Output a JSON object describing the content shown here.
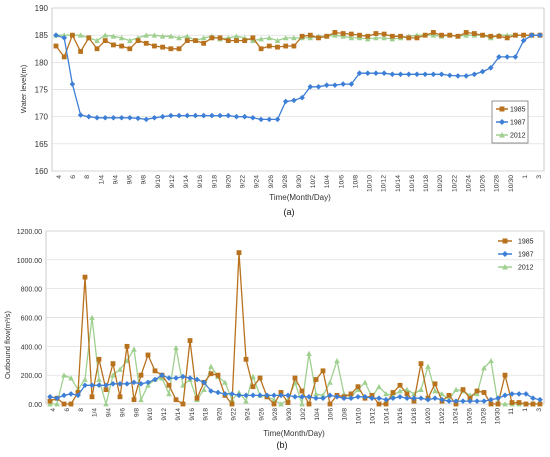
{
  "chart_data": [
    {
      "type": "line",
      "title": "",
      "xlabel": "Time(Month/Day)",
      "ylabel": "Water level(m)",
      "caption": "(a)",
      "ylim": [
        160,
        190
      ],
      "yticks": [
        "160",
        "165",
        "170",
        "175",
        "180",
        "185",
        "190"
      ],
      "x_ticks": [
        "4",
        "6",
        "8",
        "1/4",
        "9/4",
        "9/6",
        "9/8",
        "9/10",
        "9/12",
        "9/14",
        "9/16",
        "9/18",
        "9/20",
        "9/22",
        "9/24",
        "9/26",
        "9/28",
        "9/30",
        "10/2",
        "10/4",
        "10/6",
        "10/8",
        "10/10",
        "10/12",
        "10/14",
        "10/16",
        "10/18",
        "10/20",
        "10/22",
        "10/24",
        "10/26",
        "10/28",
        "10/30",
        "1",
        "3"
      ],
      "grid": true,
      "legend": "right",
      "series": [
        {
          "name": "1985",
          "color": "#b8711d",
          "marker": "square",
          "values": [
            183.0,
            181.0,
            185.0,
            182.0,
            184.5,
            182.5,
            184.0,
            183.2,
            183.0,
            182.5,
            184.0,
            183.5,
            183.0,
            182.8,
            182.5,
            182.5,
            184.0,
            184.0,
            183.5,
            184.5,
            184.5,
            184.0,
            184.0,
            184.0,
            184.5,
            182.5,
            183.0,
            182.8,
            183.0,
            183.0,
            184.8,
            185.0,
            184.5,
            184.8,
            185.5,
            185.3,
            185.2,
            185.0,
            184.8,
            185.3,
            185.2,
            184.8,
            184.8,
            184.5,
            184.5,
            185.0,
            185.5,
            185.0,
            185.0,
            184.8,
            185.5,
            185.3,
            185.0,
            184.8,
            184.8,
            184.5,
            185.0,
            185.0,
            185.0,
            185.0
          ]
        },
        {
          "name": "1987",
          "color": "#3d7fd6",
          "marker": "diamond",
          "values": [
            185.0,
            184.5,
            176.0,
            170.3,
            170.0,
            169.8,
            169.8,
            169.8,
            169.8,
            169.8,
            169.7,
            169.5,
            169.8,
            170.0,
            170.2,
            170.2,
            170.2,
            170.2,
            170.2,
            170.2,
            170.2,
            170.2,
            170.0,
            170.0,
            169.8,
            169.5,
            169.5,
            169.5,
            172.8,
            173.0,
            173.5,
            175.5,
            175.5,
            175.8,
            175.8,
            176.0,
            176.0,
            178.0,
            178.0,
            178.0,
            178.0,
            177.8,
            177.8,
            177.8,
            177.8,
            177.8,
            177.8,
            177.8,
            177.6,
            177.5,
            177.5,
            177.8,
            178.3,
            179.0,
            181.0,
            181.0,
            181.0,
            184.0,
            185.0,
            185.0
          ]
        },
        {
          "name": "2012",
          "color": "#9fd08f",
          "marker": "triangle",
          "values": [
            185.0,
            185.0,
            185.0,
            185.0,
            184.5,
            184.0,
            185.0,
            184.8,
            184.5,
            184.0,
            184.5,
            185.0,
            185.0,
            184.8,
            184.8,
            184.5,
            184.8,
            184.0,
            184.5,
            184.8,
            184.3,
            184.5,
            184.8,
            184.5,
            184.0,
            184.3,
            184.5,
            184.0,
            184.5,
            184.5,
            184.5,
            184.5,
            184.8,
            184.8,
            185.0,
            184.8,
            184.5,
            184.5,
            184.3,
            184.5,
            184.5,
            184.3,
            184.5,
            184.8,
            185.0,
            185.0,
            185.0,
            184.8,
            185.0,
            184.8,
            185.0,
            185.0,
            185.0,
            184.5,
            185.0,
            185.0,
            185.0,
            185.0,
            185.0,
            185.0
          ]
        }
      ]
    },
    {
      "type": "line",
      "title": "",
      "xlabel": "Time(Month/Day)",
      "ylabel": "Outbound  flow(m³/s)",
      "caption": "(b)",
      "ylim": [
        0,
        1200
      ],
      "yticks": [
        "0.00",
        "200.00",
        "400.00",
        "600.00",
        "800.00",
        "1000.00",
        "1200.00"
      ],
      "x_ticks": [
        "4",
        "6",
        "8",
        "1/4",
        "9/4",
        "9/6",
        "9/8",
        "9/10",
        "9/12",
        "9/14",
        "9/16",
        "9/18",
        "9/20",
        "9/22",
        "9/24",
        "9/26",
        "9/28",
        "9/30",
        "10/2",
        "10/4",
        "10/6",
        "10/8",
        "10/10",
        "10/12",
        "10/14",
        "10/16",
        "10/18",
        "10/20",
        "10/22",
        "10/24",
        "10/26",
        "10/28",
        "10/30",
        "11",
        "1",
        "3"
      ],
      "grid": true,
      "legend": "top-right",
      "series": [
        {
          "name": "1985",
          "color": "#b8711d",
          "marker": "square",
          "values": [
            20,
            40,
            0,
            0,
            80,
            880,
            50,
            310,
            100,
            280,
            50,
            400,
            30,
            200,
            340,
            230,
            200,
            130,
            30,
            0,
            440,
            40,
            150,
            210,
            200,
            60,
            0,
            1050,
            310,
            120,
            180,
            50,
            0,
            80,
            10,
            180,
            90,
            0,
            170,
            230,
            0,
            60,
            50,
            70,
            120,
            40,
            60,
            0,
            0,
            80,
            130,
            70,
            20,
            280,
            40,
            140,
            20,
            60,
            0,
            100,
            40,
            90,
            80,
            0,
            0,
            200,
            10,
            10,
            0,
            0,
            0
          ]
        },
        {
          "name": "1987",
          "color": "#3d7fd6",
          "marker": "diamond",
          "values": [
            50,
            40,
            60,
            70,
            60,
            130,
            130,
            130,
            130,
            140,
            140,
            140,
            150,
            140,
            150,
            170,
            200,
            180,
            180,
            190,
            180,
            170,
            150,
            90,
            80,
            70,
            70,
            60,
            60,
            60,
            60,
            60,
            60,
            60,
            60,
            50,
            50,
            50,
            40,
            40,
            60,
            50,
            40,
            40,
            50,
            50,
            40,
            40,
            30,
            40,
            50,
            40,
            40,
            40,
            30,
            40,
            30,
            20,
            20,
            20,
            20,
            20,
            20,
            30,
            40,
            60,
            70,
            70,
            70,
            40,
            30
          ]
        },
        {
          "name": "2012",
          "color": "#9fd08f",
          "marker": "triangle",
          "values": [
            0,
            0,
            200,
            180,
            100,
            170,
            600,
            170,
            0,
            200,
            240,
            300,
            380,
            30,
            130,
            170,
            180,
            70,
            390,
            130,
            170,
            30,
            100,
            260,
            190,
            150,
            30,
            80,
            20,
            190,
            60,
            50,
            30,
            0,
            30,
            150,
            0,
            350,
            70,
            60,
            150,
            300,
            70,
            50,
            100,
            150,
            50,
            120,
            70,
            60,
            90,
            100,
            70,
            100,
            260,
            90,
            70,
            30,
            100,
            90,
            60,
            70,
            250,
            300,
            0,
            0,
            0,
            0,
            0,
            0,
            0
          ]
        }
      ]
    }
  ]
}
